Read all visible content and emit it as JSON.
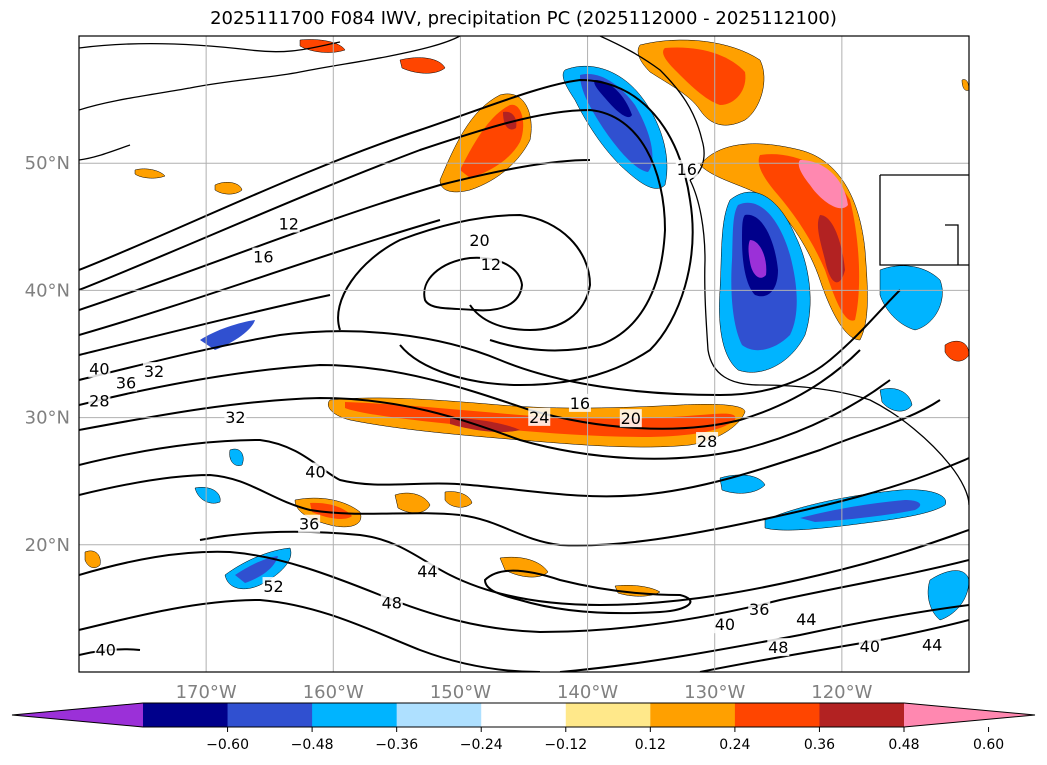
{
  "title": "2025111700 F084 IWV, precipitation PC (2025112000 - 2025112100)",
  "chart_data": {
    "type": "contour-map",
    "title": "2025111700 F084 IWV, precipitation PC (2025112000 - 2025112100)",
    "projection": "lat-lon",
    "lon_range": [
      -180,
      -110
    ],
    "lat_range": [
      10,
      60
    ],
    "lat_ticks": [
      {
        "value": 20,
        "label": "20°N"
      },
      {
        "value": 30,
        "label": "30°N"
      },
      {
        "value": 40,
        "label": "40°N"
      },
      {
        "value": 50,
        "label": "50°N"
      }
    ],
    "lon_ticks": [
      {
        "value": -170,
        "label": "170°W"
      },
      {
        "value": -160,
        "label": "160°W"
      },
      {
        "value": -150,
        "label": "150°W"
      },
      {
        "value": -140,
        "label": "140°W"
      },
      {
        "value": -130,
        "label": "130°W"
      },
      {
        "value": -120,
        "label": "120°W"
      }
    ],
    "grid": true,
    "iwv_contour_labels": [
      {
        "text": "12",
        "lon": -163.5,
        "lat": 45.1
      },
      {
        "text": "16",
        "lon": -165.5,
        "lat": 42.5
      },
      {
        "text": "20",
        "lon": -148.5,
        "lat": 43.8
      },
      {
        "text": "12",
        "lon": -147.6,
        "lat": 41.9
      },
      {
        "text": "16",
        "lon": -132.2,
        "lat": 49.4
      },
      {
        "text": "40",
        "lon": -178.4,
        "lat": 33.7
      },
      {
        "text": "36",
        "lon": -176.3,
        "lat": 32.6
      },
      {
        "text": "32",
        "lon": -174.1,
        "lat": 33.5
      },
      {
        "text": "28",
        "lon": -178.4,
        "lat": 31.2
      },
      {
        "text": "32",
        "lon": -167.7,
        "lat": 29.9
      },
      {
        "text": "24",
        "lon": -143.8,
        "lat": 29.9
      },
      {
        "text": "16",
        "lon": -140.6,
        "lat": 31.0
      },
      {
        "text": "20",
        "lon": -136.6,
        "lat": 29.8
      },
      {
        "text": "28",
        "lon": -130.6,
        "lat": 28.0
      },
      {
        "text": "40",
        "lon": -161.4,
        "lat": 25.6
      },
      {
        "text": "36",
        "lon": -161.9,
        "lat": 21.5
      },
      {
        "text": "52",
        "lon": -164.7,
        "lat": 16.6
      },
      {
        "text": "44",
        "lon": -152.6,
        "lat": 17.8
      },
      {
        "text": "48",
        "lon": -155.4,
        "lat": 15.3
      },
      {
        "text": "36",
        "lon": -126.5,
        "lat": 14.8
      },
      {
        "text": "40",
        "lon": -129.2,
        "lat": 13.6
      },
      {
        "text": "44",
        "lon": -122.8,
        "lat": 14.0
      },
      {
        "text": "48",
        "lon": -125.0,
        "lat": 11.8
      },
      {
        "text": "40",
        "lon": -117.8,
        "lat": 11.9
      },
      {
        "text": "44",
        "lon": -112.9,
        "lat": 12.0
      },
      {
        "text": "40",
        "lon": -177.9,
        "lat": 11.6
      }
    ],
    "colorbar": {
      "extend": "both",
      "boundaries": [
        -0.72,
        -0.6,
        -0.48,
        -0.36,
        -0.24,
        -0.12,
        0.12,
        0.24,
        0.36,
        0.48,
        0.6,
        0.72
      ],
      "tick_values": [
        -0.6,
        -0.48,
        -0.36,
        -0.24,
        -0.12,
        0.12,
        0.24,
        0.36,
        0.48,
        0.6
      ],
      "tick_labels": [
        "−0.60",
        "−0.48",
        "−0.36",
        "−0.24",
        "−0.12",
        "0.12",
        "0.24",
        "0.36",
        "0.48",
        "0.60"
      ],
      "colors": [
        "#9b30d8",
        "#00008b",
        "#3050d0",
        "#00b4ff",
        "#aee0ff",
        "#ffffff",
        "#ffe88a",
        "#ffa000",
        "#ff4500",
        "#b22222",
        "#ff88b0"
      ]
    },
    "precip_regions": [
      {
        "name": "gulf-of-alaska-positive",
        "level": 0.36,
        "lon": -146.5,
        "lat": 52.5
      },
      {
        "name": "gulf-of-alaska-negative",
        "level": -0.48,
        "lon": -139,
        "lat": 54
      },
      {
        "name": "pacific-northwest-positive",
        "level": 0.6,
        "lon": -121,
        "lat": 47
      },
      {
        "name": "offshore-california-negative",
        "level": -0.6,
        "lon": -124.5,
        "lat": 43
      },
      {
        "name": "subtropical-atmospheric-river",
        "level": 0.48,
        "lon": -142,
        "lat": 29.5
      },
      {
        "name": "hawaii-positive",
        "level": 0.36,
        "lon": -156.5,
        "lat": 23
      },
      {
        "name": "southeast-negative-band",
        "level": -0.36,
        "lon": -121,
        "lat": 22
      }
    ]
  }
}
